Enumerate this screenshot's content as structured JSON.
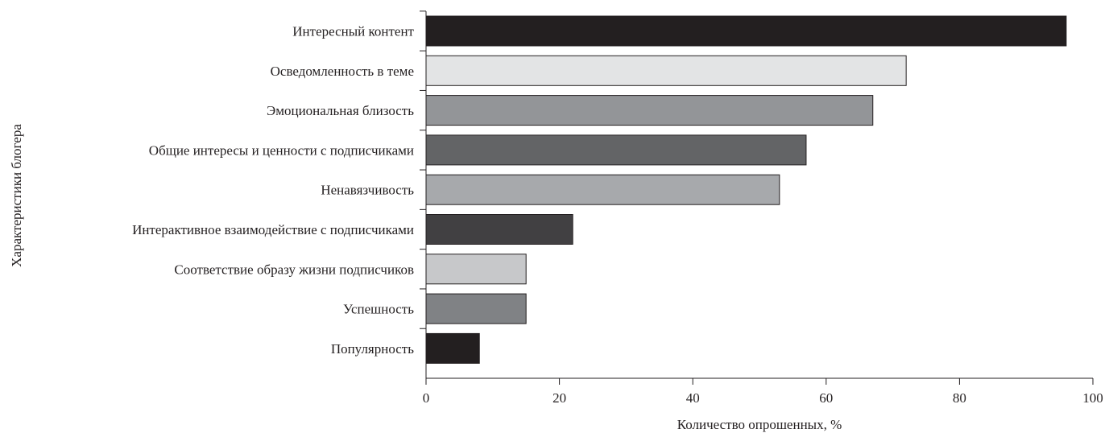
{
  "chart_data": {
    "type": "bar",
    "orientation": "horizontal",
    "categories": [
      "Интересный контент",
      "Осведомленность в теме",
      "Эмоциональная близость",
      "Общие интересы и ценности с подписчиками",
      "Ненавязчивость",
      "Интерактивное взаимодействие с подписчиками",
      "Соответствие образу жизни подписчиков",
      "Успешность",
      "Популярность"
    ],
    "values": [
      96,
      72,
      67,
      57,
      53,
      22,
      15,
      15,
      8
    ],
    "colors": [
      "#231f20",
      "#e3e4e5",
      "#939598",
      "#636466",
      "#a7a9ac",
      "#414042",
      "#c7c8ca",
      "#808285",
      "#231f20"
    ],
    "xlabel": "Количество опрошенных, %",
    "ylabel": "Характеристики блогера",
    "xlim": [
      0,
      100
    ],
    "xticks": [
      0,
      20,
      40,
      60,
      80,
      100
    ],
    "xtick_labels": [
      "0",
      "20",
      "40",
      "60",
      "80",
      "100"
    ],
    "grid": false,
    "legend": "none"
  }
}
